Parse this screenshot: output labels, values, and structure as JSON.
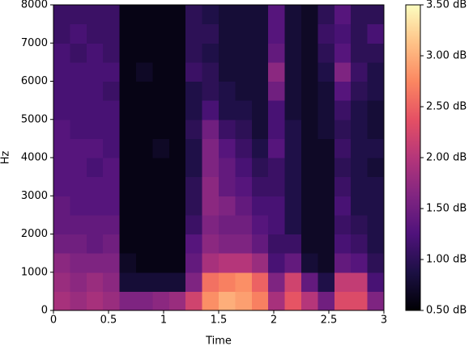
{
  "chart_data": {
    "type": "heatmap",
    "xlabel": "Time",
    "ylabel": "Hz",
    "x": [
      0,
      0.15,
      0.3,
      0.45,
      0.6,
      0.75,
      0.9,
      1.05,
      1.2,
      1.35,
      1.5,
      1.65,
      1.8,
      1.95,
      2.1,
      2.25,
      2.4,
      2.55,
      2.7,
      2.85,
      3.0
    ],
    "y": [
      0,
      500,
      1000,
      1500,
      2000,
      2500,
      3000,
      3500,
      4000,
      4500,
      5000,
      5500,
      6000,
      6500,
      7000,
      7500,
      8000
    ],
    "values": [
      [
        1.9,
        1.8,
        1.7,
        1.5,
        1.4,
        1.4,
        1.3,
        1.3,
        1.3,
        1.3,
        1.2,
        1.2,
        1.2,
        1.2,
        1.1,
        1.1
      ],
      [
        1.8,
        1.7,
        1.6,
        1.5,
        1.4,
        1.3,
        1.3,
        1.3,
        1.3,
        1.2,
        1.2,
        1.2,
        1.2,
        1.1,
        1.2,
        1.1
      ],
      [
        1.9,
        1.8,
        1.6,
        1.4,
        1.4,
        1.3,
        1.3,
        1.2,
        1.3,
        1.2,
        1.2,
        1.2,
        1.2,
        1.2,
        1.1,
        1.1
      ],
      [
        1.8,
        1.7,
        1.6,
        1.5,
        1.4,
        1.3,
        1.3,
        1.3,
        1.2,
        1.2,
        1.2,
        1.1,
        1.2,
        1.1,
        1.1,
        1.1
      ],
      [
        1.6,
        0.8,
        0.7,
        0.6,
        0.6,
        0.6,
        0.6,
        0.6,
        0.6,
        0.6,
        0.6,
        0.6,
        0.6,
        0.6,
        0.6,
        0.6
      ],
      [
        1.6,
        0.8,
        0.6,
        0.6,
        0.6,
        0.6,
        0.6,
        0.6,
        0.6,
        0.6,
        0.6,
        0.6,
        0.7,
        0.6,
        0.6,
        0.6
      ],
      [
        1.7,
        0.8,
        0.6,
        0.6,
        0.6,
        0.6,
        0.6,
        0.6,
        0.7,
        0.6,
        0.6,
        0.6,
        0.6,
        0.6,
        0.6,
        0.6
      ],
      [
        1.8,
        0.8,
        0.6,
        0.6,
        0.6,
        0.6,
        0.6,
        0.6,
        0.6,
        0.6,
        0.6,
        0.6,
        0.6,
        0.6,
        0.6,
        0.6
      ],
      [
        2.2,
        1.6,
        1.4,
        1.3,
        1.1,
        1.0,
        1.0,
        0.9,
        0.9,
        1.0,
        0.9,
        0.9,
        1.1,
        1.0,
        1.0,
        1.0
      ],
      [
        2.8,
        2.6,
        1.9,
        1.7,
        1.6,
        1.7,
        1.7,
        1.6,
        1.6,
        1.5,
        1.2,
        1.0,
        1.0,
        0.9,
        1.0,
        0.9
      ],
      [
        3.0,
        2.7,
        2.0,
        1.6,
        1.5,
        1.6,
        1.4,
        1.4,
        1.3,
        1.1,
        0.9,
        0.9,
        0.8,
        0.8,
        0.8,
        0.8
      ],
      [
        2.9,
        2.8,
        2.0,
        1.6,
        1.5,
        1.4,
        1.3,
        1.2,
        1.1,
        1.0,
        0.9,
        0.8,
        0.8,
        0.8,
        0.8,
        0.8
      ],
      [
        2.7,
        2.5,
        1.8,
        1.4,
        1.3,
        1.2,
        1.1,
        1.0,
        0.9,
        0.8,
        0.8,
        0.8,
        0.8,
        0.8,
        0.8,
        0.8
      ],
      [
        1.9,
        1.6,
        1.2,
        1.1,
        1.2,
        1.2,
        1.1,
        1.1,
        1.3,
        1.2,
        1.2,
        1.5,
        1.7,
        1.4,
        1.3,
        1.3
      ],
      [
        2.4,
        2.2,
        1.4,
        1.1,
        0.9,
        0.9,
        0.9,
        0.9,
        0.9,
        0.9,
        0.8,
        0.8,
        0.8,
        0.8,
        0.8,
        0.8
      ],
      [
        2.0,
        1.4,
        0.8,
        0.7,
        0.7,
        0.7,
        0.7,
        0.7,
        0.7,
        0.7,
        0.7,
        0.7,
        0.7,
        0.7,
        0.7,
        0.7
      ],
      [
        1.5,
        0.9,
        0.7,
        0.7,
        0.7,
        0.7,
        0.7,
        0.7,
        0.7,
        0.8,
        0.8,
        0.8,
        0.9,
        1.0,
        1.1,
        1.0
      ],
      [
        2.3,
        2.1,
        1.4,
        1.2,
        1.1,
        1.2,
        1.1,
        1.0,
        1.1,
        1.0,
        1.1,
        1.3,
        1.6,
        1.3,
        1.2,
        1.3
      ],
      [
        2.3,
        2.1,
        1.3,
        1.1,
        1.0,
        0.9,
        0.9,
        0.9,
        0.9,
        0.9,
        0.9,
        1.0,
        1.1,
        1.0,
        1.0,
        1.0
      ],
      [
        1.6,
        1.2,
        1.0,
        0.9,
        0.9,
        0.9,
        0.9,
        0.8,
        0.9,
        0.8,
        0.8,
        0.9,
        0.9,
        1.0,
        1.2,
        1.0
      ]
    ],
    "xlim": [
      0,
      3
    ],
    "xticks": [
      0,
      0.5,
      1,
      1.5,
      2,
      2.5,
      3
    ],
    "ylim": [
      0,
      8000
    ],
    "yticks": [
      0,
      1000,
      2000,
      3000,
      4000,
      5000,
      6000,
      7000,
      8000
    ],
    "clim": [
      0.5,
      3.5
    ],
    "cticks": [
      {
        "value": 0.5,
        "label": "0.50 dB"
      },
      {
        "value": 1.0,
        "label": "1.00 dB"
      },
      {
        "value": 1.5,
        "label": "1.50 dB"
      },
      {
        "value": 2.0,
        "label": "2.00 dB"
      },
      {
        "value": 2.5,
        "label": "2.50 dB"
      },
      {
        "value": 3.0,
        "label": "3.00 dB"
      },
      {
        "value": 3.5,
        "label": "3.50 dB"
      }
    ],
    "colormap": [
      "#000004",
      "#1c1044",
      "#4f127b",
      "#812581",
      "#b5367a",
      "#e55064",
      "#fb8761",
      "#fec287",
      "#fcfdbf"
    ]
  }
}
